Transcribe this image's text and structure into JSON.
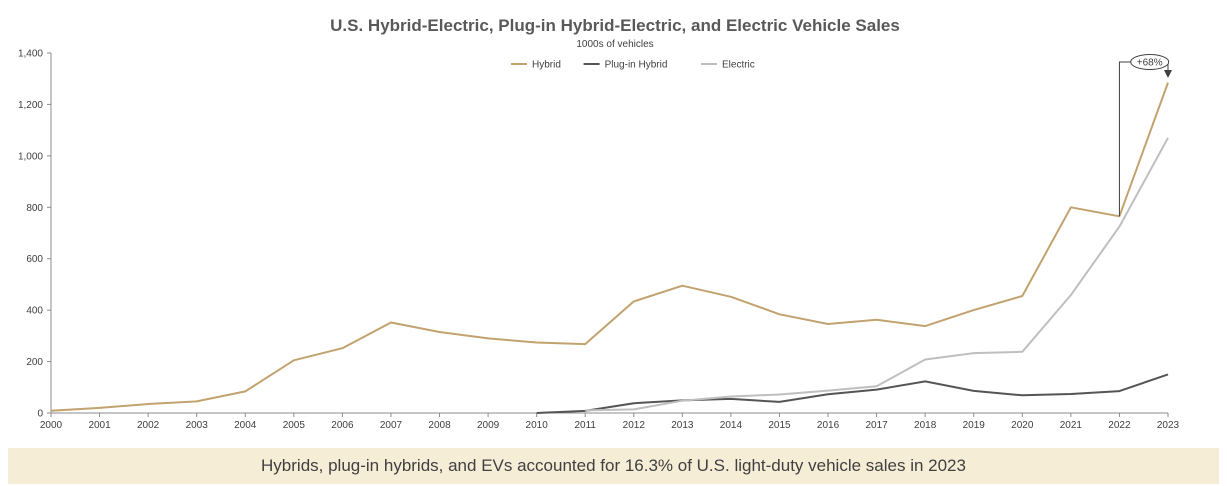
{
  "chart_data": {
    "type": "line",
    "title": "U.S. Hybrid-Electric, Plug-in Hybrid-Electric, and Electric Vehicle Sales",
    "subtitle": "1000s of vehicles",
    "xlabel": "",
    "ylabel": "",
    "ylim": [
      0,
      1400
    ],
    "yticks": [
      0,
      200,
      400,
      600,
      800,
      1000,
      1200,
      1400
    ],
    "ytick_labels": [
      "0",
      "200",
      "400",
      "600",
      "800",
      "1,000",
      "1,200",
      "1,400"
    ],
    "x": [
      2000,
      2001,
      2002,
      2003,
      2004,
      2005,
      2006,
      2007,
      2008,
      2009,
      2010,
      2011,
      2012,
      2013,
      2014,
      2015,
      2016,
      2017,
      2018,
      2019,
      2020,
      2021,
      2022,
      2023
    ],
    "grid": false,
    "legend_position": "top-center",
    "series": [
      {
        "name": "Hybrid",
        "color": "#c2a26e",
        "values": [
          9,
          20,
          35,
          45,
          84,
          205,
          252,
          352,
          315,
          290,
          274,
          268,
          434,
          495,
          452,
          384,
          346,
          363,
          338,
          400,
          455,
          800,
          765,
          1285
        ]
      },
      {
        "name": "Plug-in Hybrid",
        "color": "#555555",
        "values": [
          null,
          null,
          null,
          null,
          null,
          null,
          null,
          null,
          null,
          null,
          0,
          8,
          38,
          49,
          55,
          43,
          73,
          91,
          123,
          86,
          69,
          74,
          85,
          150
        ]
      },
      {
        "name": "Electric",
        "color": "#bfbfbf",
        "values": [
          null,
          null,
          null,
          null,
          null,
          null,
          null,
          null,
          null,
          null,
          null,
          10,
          14,
          48,
          64,
          72,
          87,
          104,
          208,
          233,
          238,
          459,
          725,
          1070
        ]
      }
    ],
    "annotation": {
      "text": "+68%",
      "series": "Hybrid",
      "from": 2022,
      "to": 2023
    }
  },
  "banner": {
    "text": "Hybrids, plug-in hybrids, and EVs accounted for 16.3% of U.S. light-duty vehicle sales in 2023"
  }
}
